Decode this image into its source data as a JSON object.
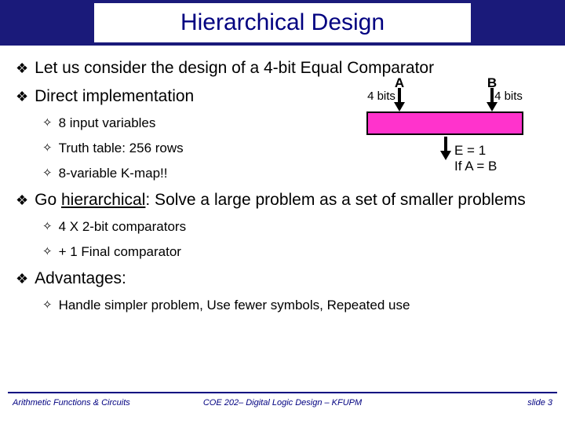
{
  "title": "Hierarchical Design",
  "colors": {
    "band_bg": "#1a1a7a",
    "title_text": "#000080",
    "body_text": "#000000",
    "box_fill": "#ff33cc",
    "box_border": "#000000",
    "footer_line": "#000080",
    "footer_text": "#000080",
    "page_bg": "#ffffff"
  },
  "bullets": {
    "b1": "Let us consider the design of a 4-bit Equal Comparator",
    "b2": "Direct implementation",
    "b2s": {
      "s1": "8 input variables",
      "s2": "Truth table: 256 rows",
      "s3": "8-variable K-map!!"
    },
    "b3_pre": "Go ",
    "b3_u": "hierarchical",
    "b3_post": ": Solve a large problem as  a set of smaller problems",
    "b3s": {
      "s1": "4 X 2-bit comparators",
      "s2": "+ 1 Final comparator"
    },
    "b4": "Advantages:",
    "b4s": {
      "s1": "Handle simpler problem, Use fewer symbols, Repeated use"
    }
  },
  "diagram": {
    "type": "flowchart",
    "label_A": "A",
    "label_B": "B",
    "bits_A": "4 bits",
    "bits_B": "4 bits",
    "out_line1": "E = 1",
    "out_line2": "If A = B",
    "box_fill": "#ff33cc",
    "box_border": "#000000",
    "arrow_color": "#000000"
  },
  "footer": {
    "left": "Arithmetic Functions & Circuits",
    "center": "COE 202– Digital Logic Design – KFUPM",
    "right": "slide 3"
  },
  "fonts": {
    "title_family": "Comic Sans MS",
    "title_size_pt": 30,
    "lvl1_size_pt": 21,
    "lvl2_size_pt": 17,
    "footer_size_pt": 11
  }
}
